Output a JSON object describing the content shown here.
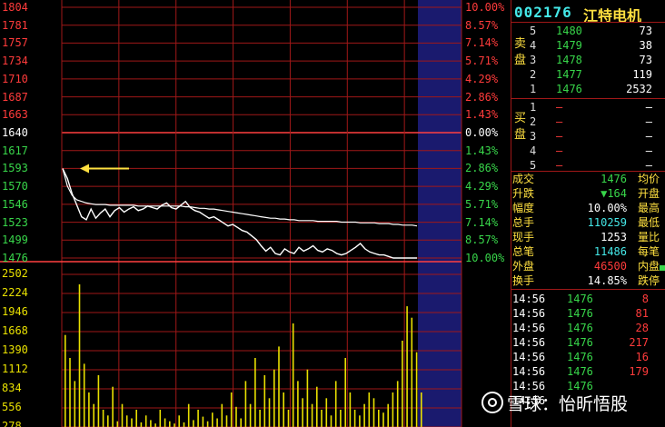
{
  "stock": {
    "code": "002176",
    "name": "江特电机"
  },
  "price_axis": [
    "1804",
    "1781",
    "1757",
    "1734",
    "1710",
    "1687",
    "1663",
    "1640",
    "1617",
    "1593",
    "1570",
    "1546",
    "1523",
    "1499",
    "1476"
  ],
  "pct_axis": [
    "10.00%",
    "8.57%",
    "7.14%",
    "5.71%",
    "4.29%",
    "2.86%",
    "1.43%",
    "0.00%",
    "1.43%",
    "2.86%",
    "4.29%",
    "5.71%",
    "7.14%",
    "8.57%",
    "10.00%"
  ],
  "volume_axis": [
    "2502",
    "2224",
    "1946",
    "1668",
    "1390",
    "1112",
    "834",
    "556",
    "278"
  ],
  "orderbook": {
    "sell_label": "卖盘",
    "buy_label": "买盘",
    "sell": [
      {
        "idx": "5",
        "price": "1480",
        "vol": "73"
      },
      {
        "idx": "4",
        "price": "1479",
        "vol": "38"
      },
      {
        "idx": "3",
        "price": "1478",
        "vol": "73"
      },
      {
        "idx": "2",
        "price": "1477",
        "vol": "119"
      },
      {
        "idx": "1",
        "price": "1476",
        "vol": "2532"
      }
    ],
    "buy": [
      {
        "idx": "1",
        "price": "—",
        "vol": "—"
      },
      {
        "idx": "2",
        "price": "—",
        "vol": "—"
      },
      {
        "idx": "3",
        "price": "—",
        "vol": "—"
      },
      {
        "idx": "4",
        "price": "—",
        "vol": "—"
      },
      {
        "idx": "5",
        "price": "—",
        "vol": "—"
      }
    ]
  },
  "stats": [
    {
      "k1": "成交",
      "v1": "1476",
      "c1": "green",
      "k2": "均价"
    },
    {
      "k1": "升跌",
      "v1": "▼164",
      "c1": "green",
      "k2": "开盘"
    },
    {
      "k1": "幅度",
      "v1": "10.00%",
      "c1": "white",
      "k2": "最高"
    },
    {
      "k1": "总手",
      "v1": "110259",
      "c1": "cyan",
      "k2": "最低"
    },
    {
      "k1": "现手",
      "v1": "1253",
      "c1": "white",
      "k2": "量比"
    },
    {
      "k1": "总笔",
      "v1": "11486",
      "c1": "cyan",
      "k2": "每笔"
    },
    {
      "k1": "外盘",
      "v1": "46500",
      "c1": "red",
      "k2": "内盘"
    },
    {
      "k1": "换手",
      "v1": "14.85%",
      "c1": "white",
      "k2": "跌停"
    }
  ],
  "ticks": [
    {
      "time": "14:56",
      "price": "1476",
      "vol": "8"
    },
    {
      "time": "14:56",
      "price": "1476",
      "vol": "81"
    },
    {
      "time": "14:56",
      "price": "1476",
      "vol": "28"
    },
    {
      "time": "14:56",
      "price": "1476",
      "vol": "217"
    },
    {
      "time": "14:56",
      "price": "1476",
      "vol": "16"
    },
    {
      "time": "14:56",
      "price": "1476",
      "vol": "179"
    },
    {
      "time": "14:56",
      "price": "1476",
      "vol": ""
    },
    {
      "time": "14:56",
      "price": "",
      "vol": ""
    }
  ],
  "watermark": "雪球：怡昕悟股",
  "colors": {
    "grid": "#a01818",
    "price_line": "#ffffff",
    "avg_line": "#ffffff",
    "volume": "#e8e000",
    "arrow": "#ffe040",
    "highlight": "#1a1a6e"
  },
  "chart_data": {
    "type": "line",
    "prev_close": 16.4,
    "price_range": [
      14.76,
      18.04
    ],
    "price_series": [
      15.93,
      15.8,
      15.6,
      15.45,
      15.3,
      15.26,
      15.4,
      15.28,
      15.35,
      15.4,
      15.3,
      15.38,
      15.42,
      15.36,
      15.4,
      15.43,
      15.38,
      15.4,
      15.44,
      15.42,
      15.4,
      15.45,
      15.48,
      15.42,
      15.4,
      15.45,
      15.5,
      15.42,
      15.38,
      15.36,
      15.32,
      15.28,
      15.3,
      15.26,
      15.22,
      15.18,
      15.2,
      15.16,
      15.12,
      15.1,
      15.05,
      15.0,
      14.92,
      14.85,
      14.9,
      14.82,
      14.8,
      14.88,
      14.84,
      14.82,
      14.9,
      14.85,
      14.88,
      14.92,
      14.86,
      14.84,
      14.88,
      14.86,
      14.82,
      14.8,
      14.82,
      14.86,
      14.9,
      14.95,
      14.88,
      14.84,
      14.82,
      14.8,
      14.8,
      14.78,
      14.76,
      14.76,
      14.76,
      14.76,
      14.76,
      14.76
    ],
    "avg_series": [
      15.93,
      15.7,
      15.58,
      15.52,
      15.5,
      15.48,
      15.47,
      15.46,
      15.46,
      15.46,
      15.45,
      15.45,
      15.45,
      15.45,
      15.45,
      15.45,
      15.44,
      15.44,
      15.44,
      15.44,
      15.44,
      15.44,
      15.44,
      15.44,
      15.44,
      15.44,
      15.43,
      15.43,
      15.42,
      15.41,
      15.41,
      15.4,
      15.4,
      15.39,
      15.38,
      15.37,
      15.36,
      15.35,
      15.34,
      15.33,
      15.32,
      15.31,
      15.3,
      15.29,
      15.28,
      15.28,
      15.27,
      15.27,
      15.26,
      15.26,
      15.25,
      15.25,
      15.25,
      15.25,
      15.24,
      15.24,
      15.24,
      15.24,
      15.24,
      15.23,
      15.23,
      15.23,
      15.23,
      15.22,
      15.22,
      15.22,
      15.22,
      15.21,
      15.21,
      15.21,
      15.2,
      15.2,
      15.19,
      15.19,
      15.19,
      15.18
    ],
    "volume_range": [
      0,
      2780
    ],
    "volume_series": [
      1600,
      1200,
      800,
      2480,
      1100,
      600,
      400,
      900,
      300,
      200,
      700,
      100,
      400,
      200,
      150,
      300,
      80,
      200,
      120,
      60,
      300,
      150,
      100,
      60,
      200,
      80,
      400,
      120,
      300,
      180,
      100,
      250,
      150,
      400,
      200,
      600,
      350,
      150,
      800,
      400,
      1200,
      300,
      900,
      500,
      1000,
      1400,
      600,
      300,
      1800,
      800,
      500,
      1000,
      400,
      700,
      300,
      500,
      200,
      800,
      300,
      1200,
      600,
      300,
      200,
      400,
      600,
      500,
      300,
      250,
      400,
      600,
      800,
      1500,
      2100,
      1900,
      1300,
      600
    ],
    "annotation": "arrow pointing at open price 1593"
  }
}
